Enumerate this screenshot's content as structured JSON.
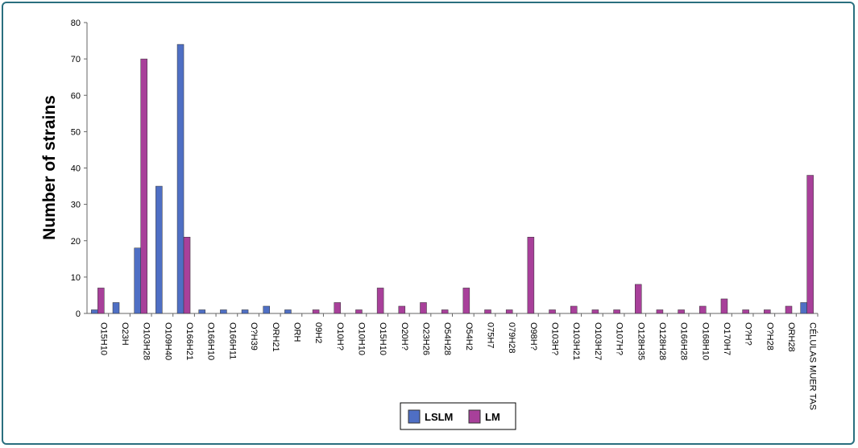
{
  "chart_data": {
    "type": "bar",
    "ylabel": "Number of strains",
    "categories": [
      "O15H10",
      "O23H",
      "O103H28",
      "O109H40",
      "O166H21",
      "O166H10",
      "O166H11",
      "O?H39",
      "ORH21",
      "ORH",
      "09H2",
      "O10H?",
      "O10H10",
      "O15H10",
      "O20H?",
      "O23H26",
      "O54H28",
      "O54H2",
      "075H7",
      "079H28",
      "O98H?",
      "O103H?",
      "O103H21",
      "O103H27",
      "O107H?",
      "O128H35",
      "O128H28",
      "O166H28",
      "O168H10",
      "O170H7",
      "O?H?",
      "O?H28",
      "ORH28",
      "CÉLULAS MUER TAS"
    ],
    "series": [
      {
        "name": "LSLM",
        "color": "#4f6fc4",
        "values": [
          1,
          3,
          18,
          35,
          74,
          1,
          1,
          1,
          2,
          1,
          0,
          0,
          0,
          0,
          0,
          0,
          0,
          0,
          0,
          0,
          0,
          0,
          0,
          0,
          0,
          0,
          0,
          0,
          0,
          0,
          0,
          0,
          0,
          3
        ]
      },
      {
        "name": "LM",
        "color": "#a8409a",
        "values": [
          7,
          0,
          70,
          0,
          21,
          0,
          0,
          0,
          0,
          0,
          1,
          3,
          1,
          7,
          2,
          3,
          1,
          7,
          1,
          1,
          21,
          1,
          2,
          1,
          1,
          8,
          1,
          1,
          2,
          4,
          1,
          1,
          2,
          38
        ]
      }
    ],
    "ylim": [
      0,
      80
    ],
    "yticks": [
      0,
      10,
      20,
      30,
      40,
      50,
      60,
      70,
      80
    ],
    "grid": false,
    "legend": "bottom"
  }
}
